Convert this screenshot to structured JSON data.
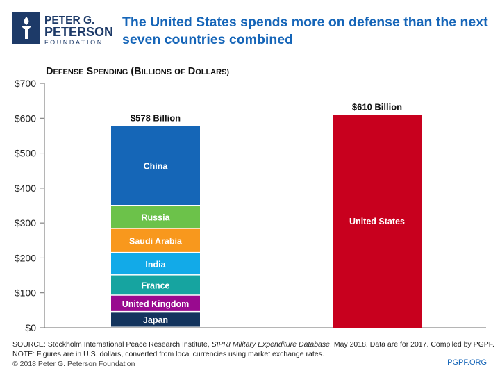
{
  "header": {
    "logo": {
      "line1": "PETER G.",
      "line2": "PETERSON",
      "line3": "FOUNDATION"
    },
    "title_lines": [
      "The United States spends more on defense than the next",
      "seven countries combined"
    ]
  },
  "chart_data": {
    "type": "bar",
    "stacked": true,
    "ylabel": "Defense Spending (Billions of Dollars)",
    "ylim": [
      0,
      700
    ],
    "yticks": [
      "$0",
      "$100",
      "$200",
      "$300",
      "$400",
      "$500",
      "$600",
      "$700"
    ],
    "grid": false,
    "legend": "none",
    "bars": [
      {
        "total_label": "$578 Billion",
        "segments": [
          {
            "name": "Japan",
            "value": 45,
            "color": "#13345d"
          },
          {
            "name": "United Kingdom",
            "value": 47,
            "color": "#990a8f"
          },
          {
            "name": "France",
            "value": 58,
            "color": "#16a4a0"
          },
          {
            "name": "India",
            "value": 64,
            "color": "#12aae8"
          },
          {
            "name": "Saudi Arabia",
            "value": 69,
            "color": "#f8981d"
          },
          {
            "name": "Russia",
            "value": 66,
            "color": "#6cc24a"
          },
          {
            "name": "China",
            "value": 229,
            "color": "#1566b7"
          }
        ]
      },
      {
        "total_label": "$610 Billion",
        "segments": [
          {
            "name": "United States",
            "value": 610,
            "color": "#c8001e"
          }
        ]
      }
    ]
  },
  "footer": {
    "source_prefix": "SOURCE: Stockholm International Peace Research Institute, ",
    "source_italic": "SIPRI Military Expenditure Database",
    "source_suffix": ", May 2018. Data are for 2017. Compiled by PGPF.",
    "note": "NOTE: Figures are in U.S. dollars, converted from local currencies using market exchange rates.",
    "copyright": "© 2018 Peter G. Peterson Foundation",
    "website": "PGPF.ORG"
  }
}
